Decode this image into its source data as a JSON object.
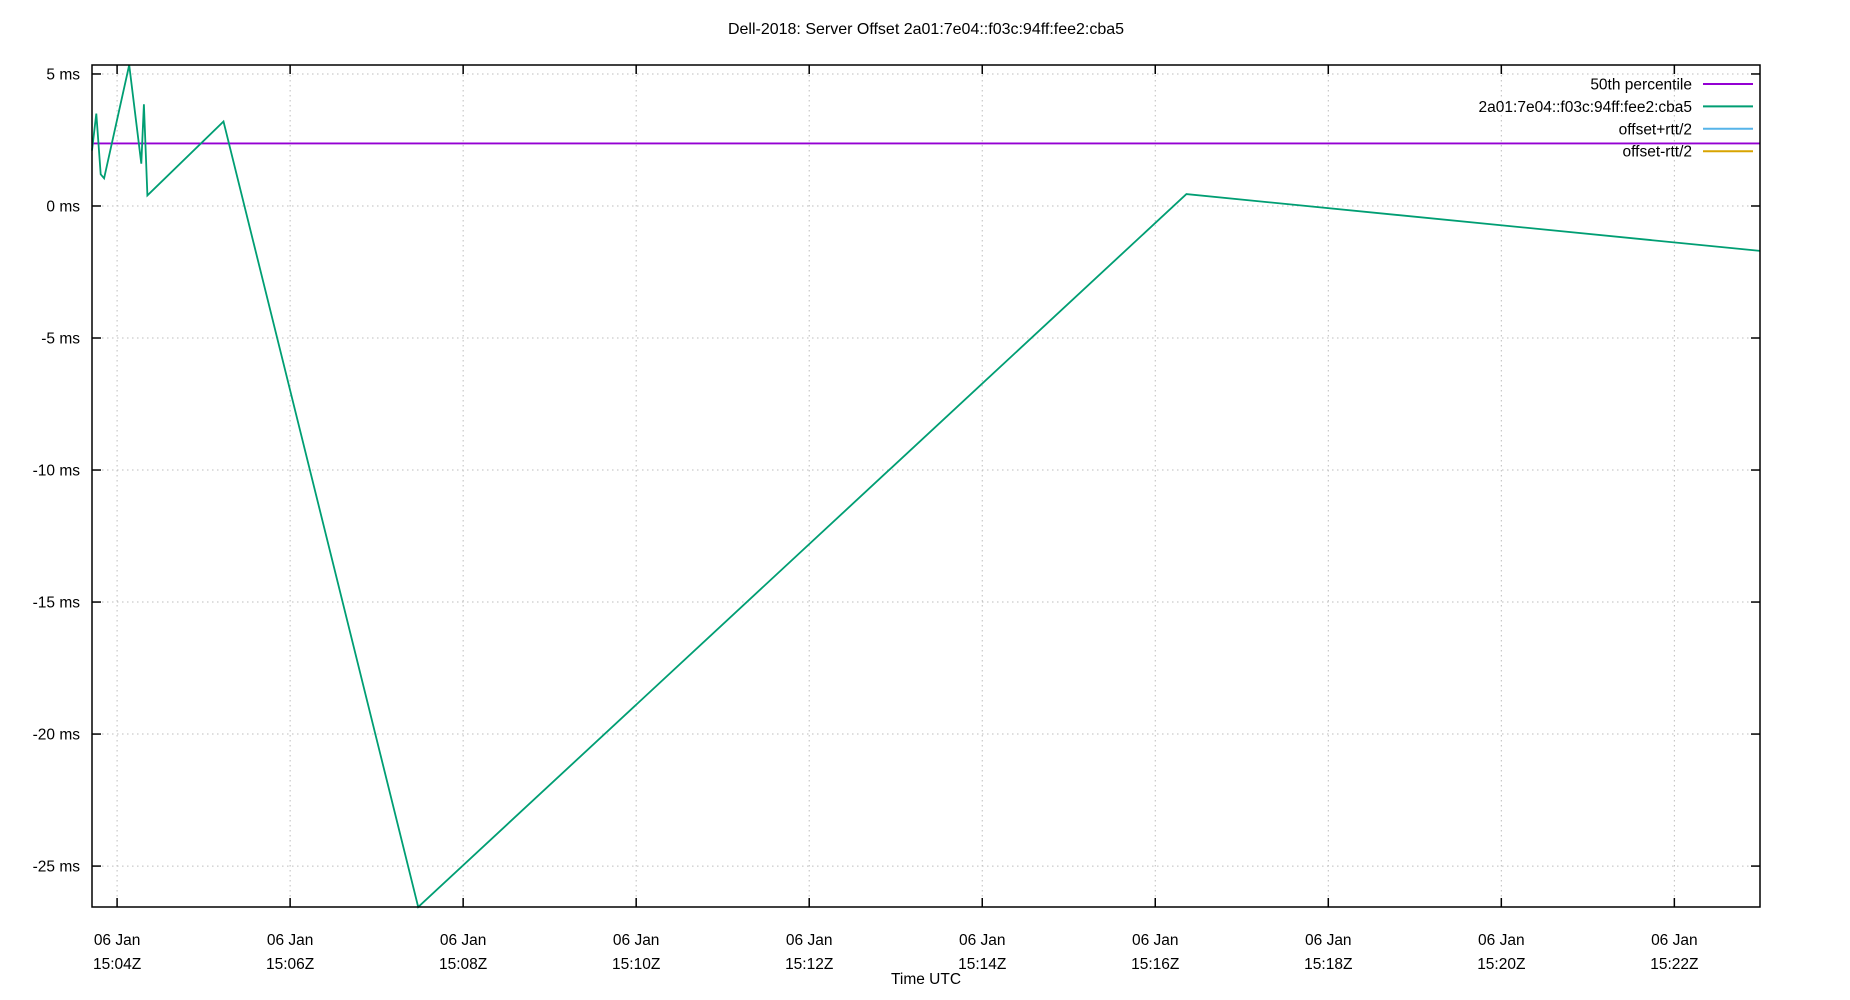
{
  "title": "Dell-2018: Server Offset 2a01:7e04::f03c:94ff:fee2:cba5",
  "xlabel": "Time UTC",
  "colors": {
    "percentile": "#9400d3",
    "offset": "#009e73",
    "offset_plus_rtt": "#56b4e9",
    "offset_minus_rtt": "#d8a400",
    "grid": "#bdbdbd",
    "axis": "#000000"
  },
  "legend": [
    {
      "label": "50th percentile",
      "color_key": "percentile"
    },
    {
      "label": "2a01:7e04::f03c:94ff:fee2:cba5",
      "color_key": "offset"
    },
    {
      "label": "offset+rtt/2",
      "color_key": "offset_plus_rtt"
    },
    {
      "label": "offset-rtt/2",
      "color_key": "offset_minus_rtt"
    }
  ],
  "chart_data": {
    "type": "line",
    "title": "Dell-2018: Server Offset 2a01:7e04::f03c:94ff:fee2:cba5",
    "xlabel": "Time UTC",
    "ylabel": "",
    "grid": true,
    "legend_position": "top-right-inside",
    "x_axis": {
      "unit": "minutes after 06 Jan 15:04Z",
      "range": [
        -0.29,
        18.99
      ],
      "ticks": [
        {
          "t": 0,
          "line1": "06 Jan",
          "line2": "15:04Z"
        },
        {
          "t": 2,
          "line1": "06 Jan",
          "line2": "15:06Z"
        },
        {
          "t": 4,
          "line1": "06 Jan",
          "line2": "15:08Z"
        },
        {
          "t": 6,
          "line1": "06 Jan",
          "line2": "15:10Z"
        },
        {
          "t": 8,
          "line1": "06 Jan",
          "line2": "15:12Z"
        },
        {
          "t": 10,
          "line1": "06 Jan",
          "line2": "15:14Z"
        },
        {
          "t": 12,
          "line1": "06 Jan",
          "line2": "15:16Z"
        },
        {
          "t": 14,
          "line1": "06 Jan",
          "line2": "15:18Z"
        },
        {
          "t": 16,
          "line1": "06 Jan",
          "line2": "15:20Z"
        },
        {
          "t": 18,
          "line1": "06 Jan",
          "line2": "15:22Z"
        }
      ]
    },
    "y_axis": {
      "unit": "ms",
      "range": [
        -26.55,
        5.34
      ],
      "ticks": [
        {
          "v": 5,
          "label": "5 ms"
        },
        {
          "v": 0,
          "label": "0 ms"
        },
        {
          "v": -5,
          "label": "-5 ms"
        },
        {
          "v": -10,
          "label": "-10 ms"
        },
        {
          "v": -15,
          "label": "-15 ms"
        },
        {
          "v": -20,
          "label": "-20 ms"
        },
        {
          "v": -25,
          "label": "-25 ms"
        }
      ]
    },
    "series": [
      {
        "name": "50th percentile",
        "type": "hline",
        "value": 2.37,
        "color_key": "percentile"
      },
      {
        "name": "2a01:7e04::f03c:94ff:fee2:cba5",
        "type": "line",
        "color_key": "offset",
        "points": [
          [
            -0.29,
            2.1
          ],
          [
            -0.24,
            3.5
          ],
          [
            -0.19,
            1.2
          ],
          [
            -0.15,
            1.05
          ],
          [
            0.14,
            5.34
          ],
          [
            0.28,
            1.6
          ],
          [
            0.31,
            3.85
          ],
          [
            0.35,
            0.4
          ],
          [
            1.23,
            3.2
          ],
          [
            3.48,
            -26.55
          ],
          [
            12.36,
            0.45
          ],
          [
            18.99,
            -1.7
          ]
        ]
      }
    ]
  }
}
